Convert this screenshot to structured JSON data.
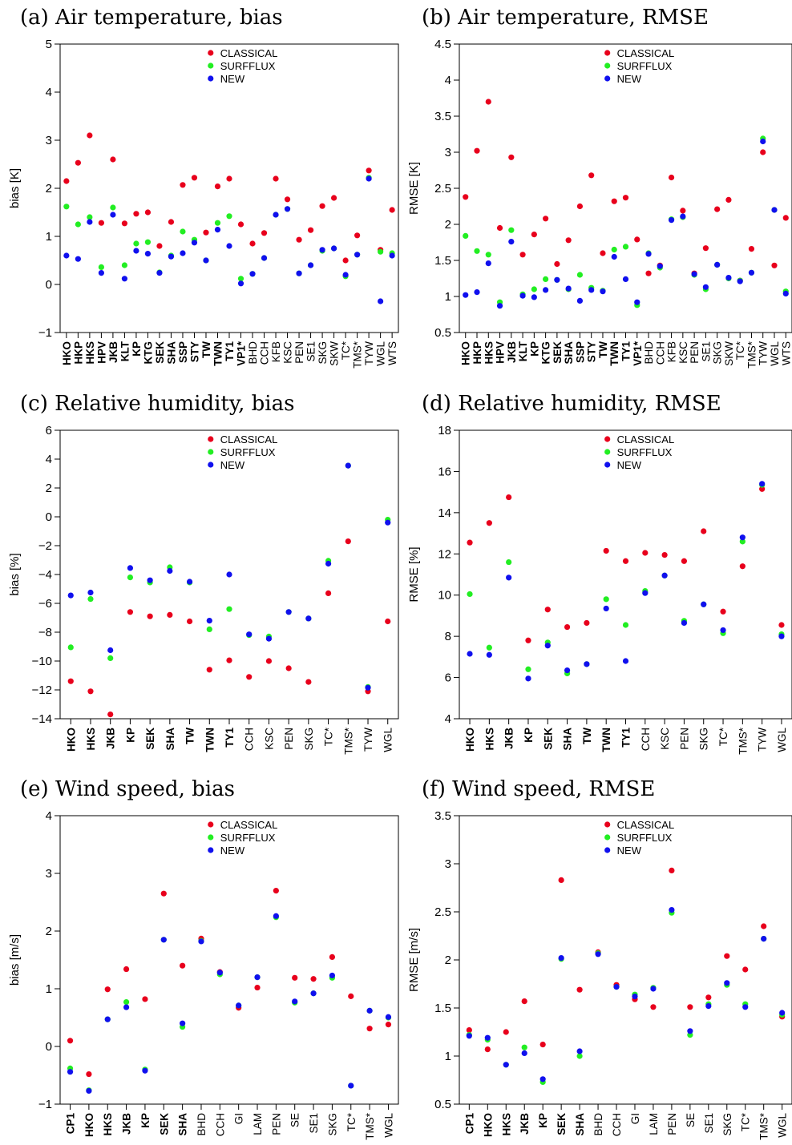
{
  "colors": {
    "CLASSICAL": "#e8001c",
    "SURFFLUX": "#22ee22",
    "NEW": "#1010ee"
  },
  "chart_data": [
    {
      "id": "a",
      "type": "scatter",
      "title": "(a) Air temperature, bias",
      "ylabel": "bias [K]",
      "ylim": [
        -1,
        5
      ],
      "yticks": [
        -1,
        0,
        1,
        2,
        3,
        4,
        5
      ],
      "categories": [
        "HKO",
        "HKP",
        "HKS",
        "HPV",
        "JKB",
        "KLT",
        "KP",
        "KTG",
        "SEK",
        "SHA",
        "SSP",
        "STY",
        "TW",
        "TWN",
        "TY1",
        "VP1*",
        "BHD",
        "CCH",
        "KFB",
        "KSC",
        "PEN",
        "SE1",
        "SKG",
        "SKW",
        "TC*",
        "TMS*",
        "TYW",
        "WGL",
        "WTS"
      ],
      "bold_categories": [
        "HKO",
        "HKP",
        "HKS",
        "HPV",
        "JKB",
        "KLT",
        "KP",
        "KTG",
        "SEK",
        "SHA",
        "SSP",
        "STY",
        "TW",
        "TWN",
        "TY1",
        "VP1*"
      ],
      "legend": [
        "CLASSICAL",
        "SURFFLUX",
        "NEW"
      ],
      "series": [
        {
          "name": "CLASSICAL",
          "values": [
            2.15,
            2.53,
            3.1,
            1.28,
            2.6,
            1.27,
            1.47,
            1.5,
            0.8,
            1.3,
            2.07,
            2.22,
            1.08,
            2.04,
            2.2,
            1.25,
            0.85,
            1.07,
            2.2,
            1.77,
            0.93,
            1.13,
            1.63,
            1.8,
            0.5,
            1.02,
            2.37,
            0.72,
            1.55
          ]
        },
        {
          "name": "SURFFLUX",
          "values": [
            1.62,
            1.25,
            1.4,
            0.36,
            1.6,
            0.4,
            0.85,
            0.88,
            0.25,
            0.6,
            1.1,
            0.93,
            0.5,
            1.28,
            1.42,
            0.12,
            0.22,
            0.55,
            1.45,
            1.57,
            0.23,
            0.4,
            0.7,
            0.75,
            0.17,
            0.62,
            2.22,
            0.68,
            0.65
          ]
        },
        {
          "name": "NEW",
          "values": [
            0.6,
            0.53,
            1.3,
            0.24,
            1.45,
            0.12,
            0.7,
            0.64,
            0.24,
            0.58,
            0.65,
            0.87,
            0.5,
            1.14,
            0.8,
            0.02,
            0.22,
            0.55,
            1.45,
            1.57,
            0.23,
            0.4,
            0.72,
            0.75,
            0.2,
            0.62,
            2.2,
            -0.35,
            0.6
          ]
        }
      ]
    },
    {
      "id": "b",
      "type": "scatter",
      "title": "(b) Air temperature, RMSE",
      "ylabel": "RMSE [K]",
      "ylim": [
        0.5,
        4.5
      ],
      "yticks": [
        0.5,
        1,
        1.5,
        2,
        2.5,
        3,
        3.5,
        4,
        4.5
      ],
      "categories": [
        "HKO",
        "HKP",
        "HKS",
        "HPV",
        "JKB",
        "KLT",
        "KP",
        "KTG",
        "SEK",
        "SHA",
        "SSP",
        "STY",
        "TW",
        "TWN",
        "TY1",
        "VP1*",
        "BHD",
        "CCH",
        "KFB",
        "KSC",
        "PEN",
        "SE1",
        "SKG",
        "SKW",
        "TC*",
        "TMS*",
        "TYW",
        "WGL",
        "WTS"
      ],
      "bold_categories": [
        "HKO",
        "HKP",
        "HKS",
        "HPV",
        "JKB",
        "KLT",
        "KP",
        "KTG",
        "SEK",
        "SHA",
        "SSP",
        "STY",
        "TW",
        "TWN",
        "TY1",
        "VP1*"
      ],
      "legend": [
        "CLASSICAL",
        "SURFFLUX",
        "NEW"
      ],
      "series": [
        {
          "name": "CLASSICAL",
          "values": [
            2.38,
            3.02,
            3.7,
            1.95,
            2.93,
            1.58,
            1.86,
            2.08,
            1.45,
            1.78,
            2.25,
            2.68,
            1.6,
            2.32,
            2.37,
            1.79,
            1.32,
            1.43,
            2.65,
            2.19,
            1.32,
            1.67,
            2.21,
            2.34,
            1.22,
            1.66,
            3.0,
            1.43,
            2.09
          ]
        },
        {
          "name": "SURFFLUX",
          "values": [
            1.84,
            1.63,
            1.58,
            0.92,
            1.92,
            1.03,
            1.1,
            1.24,
            1.23,
            1.1,
            1.3,
            1.12,
            1.08,
            1.65,
            1.69,
            0.88,
            1.6,
            1.4,
            2.07,
            2.1,
            1.3,
            1.1,
            1.44,
            1.25,
            1.22,
            1.33,
            3.19,
            2.2,
            1.07
          ]
        },
        {
          "name": "NEW",
          "values": [
            1.02,
            1.06,
            1.46,
            0.87,
            1.76,
            1.01,
            0.99,
            1.09,
            1.23,
            1.11,
            0.94,
            1.09,
            1.07,
            1.55,
            1.24,
            0.92,
            1.59,
            1.42,
            2.06,
            2.11,
            1.31,
            1.13,
            1.44,
            1.26,
            1.21,
            1.33,
            3.15,
            2.2,
            1.04
          ]
        }
      ]
    },
    {
      "id": "c",
      "type": "scatter",
      "title": "(c) Relative humidity, bias",
      "ylabel": "bias [%]",
      "ylim": [
        -14,
        6
      ],
      "yticks": [
        -14,
        -12,
        -10,
        -8,
        -6,
        -4,
        -2,
        0,
        2,
        4,
        6
      ],
      "categories": [
        "HKO",
        "HKS",
        "JKB",
        "KP",
        "SEK",
        "SHA",
        "TW",
        "TWN",
        "TY1",
        "CCH",
        "KSC",
        "PEN",
        "SKG",
        "TC*",
        "TMS*",
        "TYW",
        "WGL"
      ],
      "bold_categories": [
        "HKO",
        "HKS",
        "JKB",
        "KP",
        "SEK",
        "SHA",
        "TW",
        "TWN",
        "TY1"
      ],
      "legend": [
        "CLASSICAL",
        "SURFFLUX",
        "NEW"
      ],
      "series": [
        {
          "name": "CLASSICAL",
          "values": [
            -11.4,
            -12.1,
            -13.7,
            -6.6,
            -6.9,
            -6.8,
            -7.25,
            -10.6,
            -9.95,
            -11.1,
            -10.0,
            -10.5,
            -11.45,
            -5.3,
            -1.7,
            -12.1,
            -7.25
          ]
        },
        {
          "name": "SURFFLUX",
          "values": [
            -9.05,
            -5.7,
            -9.8,
            -4.2,
            -4.55,
            -3.5,
            -4.55,
            -7.8,
            -6.4,
            -8.2,
            -8.3,
            -6.6,
            -7.05,
            -3.05,
            3.55,
            -11.8,
            -0.2
          ]
        },
        {
          "name": "NEW",
          "values": [
            -5.45,
            -5.25,
            -9.25,
            -3.55,
            -4.4,
            -3.75,
            -4.5,
            -7.2,
            -4.0,
            -8.15,
            -8.45,
            -6.6,
            -7.05,
            -3.25,
            3.55,
            -11.85,
            -0.4
          ]
        }
      ]
    },
    {
      "id": "d",
      "type": "scatter",
      "title": "(d) Relative humidity, RMSE",
      "ylabel": "RMSE [%]",
      "ylim": [
        4,
        18
      ],
      "yticks": [
        4,
        6,
        8,
        10,
        12,
        14,
        16,
        18
      ],
      "categories": [
        "HKO",
        "HKS",
        "JKB",
        "KP",
        "SEK",
        "SHA",
        "TW",
        "TWN",
        "TY1",
        "CCH",
        "KSC",
        "PEN",
        "SKG",
        "TC*",
        "TMS*",
        "TYW",
        "WGL"
      ],
      "bold_categories": [
        "HKO",
        "HKS",
        "JKB",
        "KP",
        "SEK",
        "SHA",
        "TW",
        "TWN",
        "TY1"
      ],
      "legend": [
        "CLASSICAL",
        "SURFFLUX",
        "NEW"
      ],
      "series": [
        {
          "name": "CLASSICAL",
          "values": [
            12.55,
            13.5,
            14.75,
            7.8,
            9.3,
            8.45,
            8.65,
            12.15,
            11.65,
            12.05,
            11.95,
            11.65,
            13.1,
            9.2,
            11.4,
            15.15,
            8.55
          ]
        },
        {
          "name": "SURFFLUX",
          "values": [
            10.05,
            7.45,
            11.6,
            6.4,
            7.7,
            6.2,
            6.65,
            9.8,
            8.55,
            10.2,
            10.95,
            8.75,
            9.55,
            8.15,
            12.6,
            15.35,
            8.1
          ]
        },
        {
          "name": "NEW",
          "values": [
            7.15,
            7.1,
            10.85,
            5.95,
            7.55,
            6.35,
            6.65,
            9.35,
            6.8,
            10.1,
            10.95,
            8.65,
            9.55,
            8.3,
            12.8,
            15.4,
            8.0
          ]
        }
      ]
    },
    {
      "id": "e",
      "type": "scatter",
      "title": "(e) Wind speed, bias",
      "ylabel": "bias [m/s]",
      "ylim": [
        -1,
        4
      ],
      "yticks": [
        -1,
        0,
        1,
        2,
        3,
        4
      ],
      "categories": [
        "CP1",
        "HKO",
        "HKS",
        "JKB",
        "KP",
        "SEK",
        "SHA",
        "BHD",
        "CCH",
        "GI",
        "LAM",
        "PEN",
        "SE",
        "SE1",
        "SKG",
        "TC*",
        "TMS*",
        "WGL"
      ],
      "bold_categories": [
        "CP1",
        "HKO",
        "HKS",
        "JKB",
        "KP",
        "SEK",
        "SHA"
      ],
      "legend": [
        "CLASSICAL",
        "SURFFLUX",
        "NEW"
      ],
      "series": [
        {
          "name": "CLASSICAL",
          "values": [
            0.1,
            -0.48,
            0.99,
            1.34,
            0.82,
            2.65,
            1.4,
            1.87,
            1.29,
            0.67,
            1.02,
            2.7,
            1.19,
            1.17,
            1.55,
            0.87,
            0.31,
            0.38
          ]
        },
        {
          "name": "SURFFLUX",
          "values": [
            -0.38,
            -0.76,
            0.47,
            0.77,
            -0.4,
            1.85,
            0.34,
            1.83,
            1.25,
            0.71,
            1.2,
            2.24,
            0.76,
            0.92,
            1.19,
            -0.68,
            0.62,
            0.5
          ]
        },
        {
          "name": "NEW",
          "values": [
            -0.44,
            -0.77,
            0.47,
            0.68,
            -0.42,
            1.85,
            0.4,
            1.82,
            1.28,
            0.71,
            1.2,
            2.26,
            0.78,
            0.92,
            1.23,
            -0.68,
            0.62,
            0.51
          ]
        }
      ]
    },
    {
      "id": "f",
      "type": "scatter",
      "title": "(f) Wind speed, RMSE",
      "ylabel": "RMSE [m/s]",
      "ylim": [
        0.5,
        3.5
      ],
      "yticks": [
        0.5,
        1,
        1.5,
        2,
        2.5,
        3,
        3.5
      ],
      "categories": [
        "CP1",
        "HKO",
        "HKS",
        "JKB",
        "KP",
        "SEK",
        "SHA",
        "BHD",
        "CCH",
        "GI",
        "LAM",
        "PEN",
        "SE",
        "SE1",
        "SKG",
        "TC*",
        "TMS*",
        "WGL"
      ],
      "bold_categories": [
        "CP1",
        "HKO",
        "HKS",
        "JKB",
        "KP",
        "SEK",
        "SHA"
      ],
      "legend": [
        "CLASSICAL",
        "SURFFLUX",
        "NEW"
      ],
      "series": [
        {
          "name": "CLASSICAL",
          "values": [
            1.27,
            1.07,
            1.25,
            1.57,
            1.12,
            2.83,
            1.69,
            2.08,
            1.74,
            1.59,
            1.51,
            2.93,
            1.51,
            1.61,
            2.04,
            1.9,
            2.35,
            1.41
          ]
        },
        {
          "name": "SURFFLUX",
          "values": [
            1.22,
            1.17,
            0.91,
            1.09,
            0.73,
            2.01,
            1.0,
            2.07,
            1.72,
            1.64,
            1.71,
            2.49,
            1.22,
            1.54,
            1.74,
            1.54,
            2.22,
            1.43
          ]
        },
        {
          "name": "NEW",
          "values": [
            1.21,
            1.19,
            0.91,
            1.03,
            0.76,
            2.02,
            1.05,
            2.06,
            1.72,
            1.62,
            1.7,
            2.52,
            1.26,
            1.52,
            1.76,
            1.51,
            2.22,
            1.45
          ]
        }
      ]
    }
  ]
}
